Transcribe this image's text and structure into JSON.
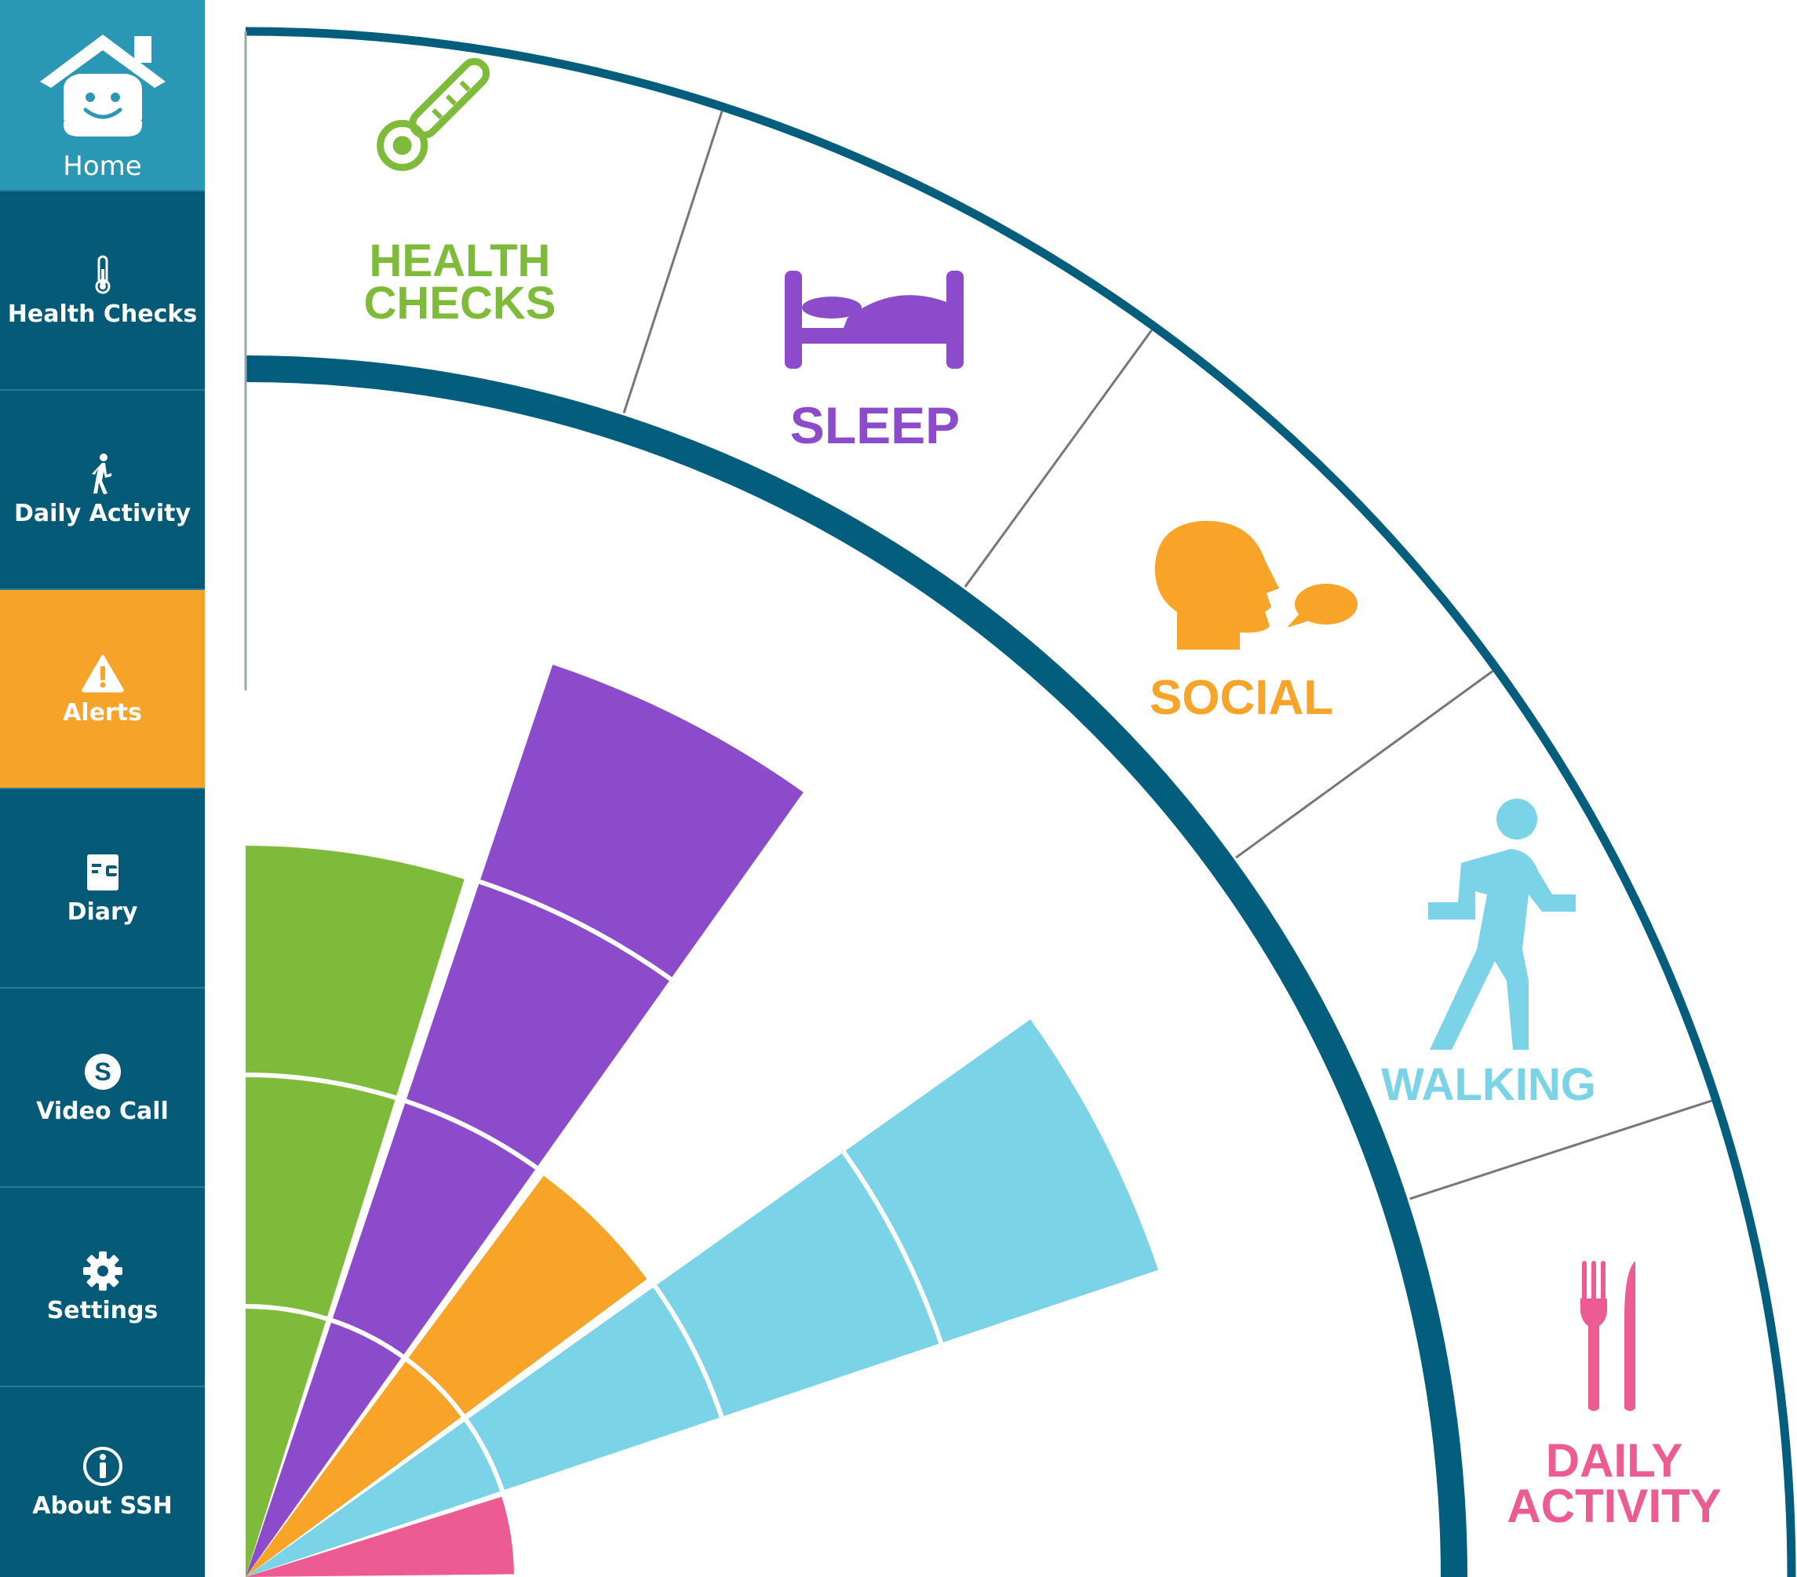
{
  "sidebar": {
    "items": [
      {
        "id": "home",
        "label": "Home",
        "icon": "house-smiley-icon",
        "active": false,
        "color": "#2a97b5"
      },
      {
        "id": "health-checks",
        "label": "Health Checks",
        "icon": "thermometer-icon",
        "active": false,
        "color": "#055a78"
      },
      {
        "id": "daily-activity",
        "label": "Daily Activity",
        "icon": "walking-person-icon",
        "active": false,
        "color": "#055a78"
      },
      {
        "id": "alerts",
        "label": "Alerts",
        "icon": "warning-triangle-icon",
        "active": true,
        "color": "#f6a429"
      },
      {
        "id": "diary",
        "label": "Diary",
        "icon": "diary-book-icon",
        "active": false,
        "color": "#055a78"
      },
      {
        "id": "video-call",
        "label": "Video Call",
        "icon": "skype-icon",
        "active": false,
        "color": "#055a78"
      },
      {
        "id": "settings",
        "label": "Settings",
        "icon": "gear-icon",
        "active": false,
        "color": "#055a78"
      },
      {
        "id": "about",
        "label": "About SSH",
        "icon": "info-icon",
        "active": false,
        "color": "#055a78"
      }
    ]
  },
  "wheel": {
    "ring_color": "#035d7c",
    "segments": [
      {
        "id": "health-checks",
        "line1": "HEALTH",
        "line2": "CHECKS",
        "icon": "thermometer-icon",
        "color": "#7fbb3a",
        "level": 3,
        "max_level": 3
      },
      {
        "id": "sleep",
        "line1": "SLEEP",
        "line2": "",
        "icon": "bed-icon",
        "color": "#8c4bcb",
        "level": 4,
        "max_level": 4
      },
      {
        "id": "social",
        "line1": "SOCIAL",
        "line2": "",
        "icon": "talking-head-icon",
        "color": "#f7a428",
        "level": 2,
        "max_level": 4
      },
      {
        "id": "walking",
        "line1": "WALKING",
        "line2": "",
        "icon": "walking-person-icon",
        "color": "#7bd3e8",
        "level": 4,
        "max_level": 4
      },
      {
        "id": "daily-activity",
        "line1": "DAILY",
        "line2": "ACTIVITY",
        "icon": "fork-knife-icon",
        "color": "#ec5b92",
        "level": 1,
        "max_level": 4
      }
    ]
  }
}
